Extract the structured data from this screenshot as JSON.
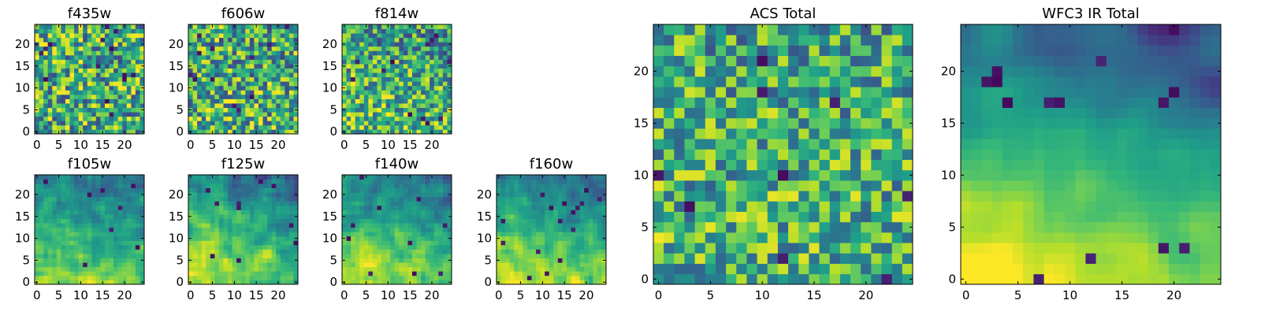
{
  "chart_data": [
    {
      "type": "heatmap",
      "title": "f435w",
      "grid": [
        25,
        25
      ],
      "xlim": [
        -0.5,
        24.5
      ],
      "ylim": [
        -0.5,
        24.5
      ],
      "xticks": [
        0,
        5,
        10,
        15,
        20
      ],
      "yticks": [
        0,
        5,
        10,
        15,
        20
      ],
      "seed": 11,
      "gradient": 0.0,
      "noise": 0.5,
      "smooth": 0,
      "darkspots": 14
    },
    {
      "type": "heatmap",
      "title": "f606w",
      "grid": [
        25,
        25
      ],
      "xlim": [
        -0.5,
        24.5
      ],
      "ylim": [
        -0.5,
        24.5
      ],
      "xticks": [
        0,
        5,
        10,
        15,
        20
      ],
      "yticks": [
        0,
        5,
        10,
        15,
        20
      ],
      "seed": 23,
      "gradient": 0.05,
      "noise": 0.5,
      "smooth": 0,
      "darkspots": 12
    },
    {
      "type": "heatmap",
      "title": "f814w",
      "grid": [
        25,
        25
      ],
      "xlim": [
        -0.5,
        24.5
      ],
      "ylim": [
        -0.5,
        24.5
      ],
      "xticks": [
        0,
        5,
        10,
        15,
        20
      ],
      "yticks": [
        0,
        5,
        10,
        15,
        20
      ],
      "seed": 37,
      "gradient": 0.12,
      "noise": 0.45,
      "smooth": 0,
      "darkspots": 12
    },
    {
      "type": "heatmap",
      "title": "f105w",
      "grid": [
        25,
        25
      ],
      "xlim": [
        -0.5,
        24.5
      ],
      "ylim": [
        -0.5,
        24.5
      ],
      "xticks": [
        0,
        5,
        10,
        15,
        20
      ],
      "yticks": [
        0,
        5,
        10,
        15,
        20
      ],
      "seed": 41,
      "gradient": 0.35,
      "noise": 0.25,
      "smooth": 1,
      "darkspots": 8
    },
    {
      "type": "heatmap",
      "title": "f125w",
      "grid": [
        25,
        25
      ],
      "xlim": [
        -0.5,
        24.5
      ],
      "ylim": [
        -0.5,
        24.5
      ],
      "xticks": [
        0,
        5,
        10,
        15,
        20
      ],
      "yticks": [
        0,
        5,
        10,
        15,
        20
      ],
      "seed": 53,
      "gradient": 0.35,
      "noise": 0.3,
      "smooth": 1,
      "darkspots": 10
    },
    {
      "type": "heatmap",
      "title": "f140w",
      "grid": [
        25,
        25
      ],
      "xlim": [
        -0.5,
        24.5
      ],
      "ylim": [
        -0.5,
        24.5
      ],
      "xticks": [
        0,
        5,
        10,
        15,
        20
      ],
      "yticks": [
        0,
        5,
        10,
        15,
        20
      ],
      "seed": 67,
      "gradient": 0.4,
      "noise": 0.25,
      "smooth": 1,
      "darkspots": 10
    },
    {
      "type": "heatmap",
      "title": "f160w",
      "grid": [
        25,
        25
      ],
      "xlim": [
        -0.5,
        24.5
      ],
      "ylim": [
        -0.5,
        24.5
      ],
      "xticks": [
        0,
        5,
        10,
        15,
        20
      ],
      "yticks": [
        0,
        5,
        10,
        15,
        20
      ],
      "seed": 79,
      "gradient": 0.45,
      "noise": 0.25,
      "smooth": 1,
      "darkspots": 16
    },
    {
      "type": "heatmap",
      "title": "ACS Total",
      "grid": [
        25,
        25
      ],
      "xlim": [
        -0.5,
        24.5
      ],
      "ylim": [
        -0.5,
        24.5
      ],
      "xticks": [
        0,
        5,
        10,
        15,
        20
      ],
      "yticks": [
        0,
        5,
        10,
        15,
        20
      ],
      "seed": 97,
      "gradient": 0.05,
      "noise": 0.42,
      "smooth": 0,
      "darkspots": 9
    },
    {
      "type": "heatmap",
      "title": "WFC3 IR Total",
      "grid": [
        25,
        25
      ],
      "xlim": [
        -0.5,
        24.5
      ],
      "ylim": [
        -0.5,
        24.5
      ],
      "xticks": [
        0,
        5,
        10,
        15,
        20
      ],
      "yticks": [
        0,
        5,
        10,
        15,
        20
      ],
      "seed": 113,
      "gradient": 0.55,
      "noise": 0.18,
      "smooth": 2,
      "darkspots": 14
    }
  ],
  "colormap": "viridis"
}
